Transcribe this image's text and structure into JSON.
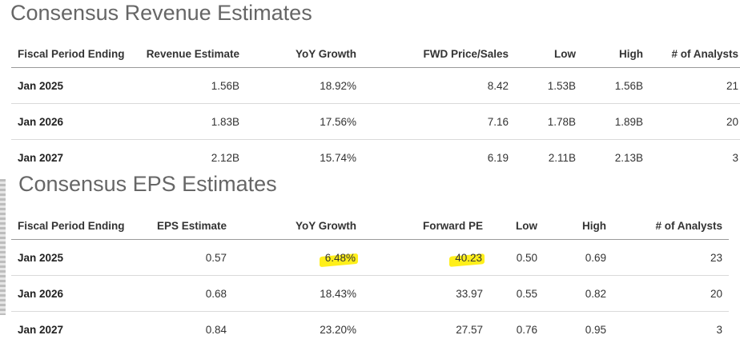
{
  "revenue": {
    "title": "Consensus Revenue Estimates",
    "headers": [
      "Fiscal Period Ending",
      "Revenue Estimate",
      "YoY Growth",
      "FWD Price/Sales",
      "Low",
      "High",
      "# of Analysts"
    ],
    "rows": [
      [
        "Jan 2025",
        "1.56B",
        "18.92%",
        "8.42",
        "1.53B",
        "1.56B",
        "21"
      ],
      [
        "Jan 2026",
        "1.83B",
        "17.56%",
        "7.16",
        "1.78B",
        "1.89B",
        "20"
      ],
      [
        "Jan 2027",
        "2.12B",
        "15.74%",
        "6.19",
        "2.11B",
        "2.13B",
        "3"
      ]
    ]
  },
  "eps": {
    "title": "Consensus EPS Estimates",
    "headers": [
      "Fiscal Period Ending",
      "EPS Estimate",
      "YoY Growth",
      "Forward PE",
      "Low",
      "High",
      "# of Analysts"
    ],
    "rows": [
      [
        "Jan 2025",
        "0.57",
        "6.48%",
        "40.23",
        "0.50",
        "0.69",
        "23"
      ],
      [
        "Jan 2026",
        "0.68",
        "18.43%",
        "33.97",
        "0.55",
        "0.82",
        "20"
      ],
      [
        "Jan 2027",
        "0.84",
        "23.20%",
        "27.57",
        "0.76",
        "0.95",
        "3"
      ]
    ],
    "highlight_color": "#ffef1a"
  }
}
